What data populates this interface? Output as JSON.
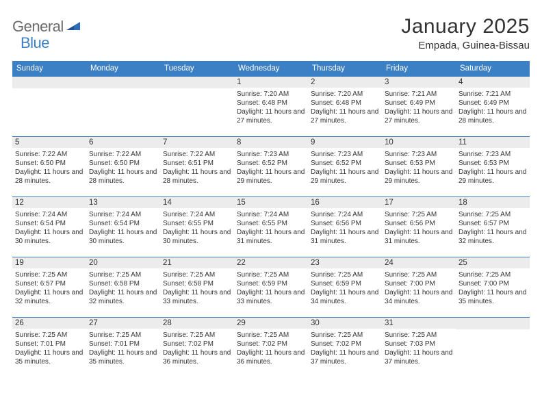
{
  "logo": {
    "word1": "General",
    "word2": "Blue"
  },
  "title": "January 2025",
  "location": "Empada, Guinea-Bissau",
  "colors": {
    "header_bg": "#3b7fc4",
    "date_bg": "#ececec",
    "text": "#333333",
    "logo_gray": "#6a6a6a",
    "logo_blue": "#3b7fc4"
  },
  "day_names": [
    "Sunday",
    "Monday",
    "Tuesday",
    "Wednesday",
    "Thursday",
    "Friday",
    "Saturday"
  ],
  "weeks": [
    [
      null,
      null,
      null,
      {
        "date": "1",
        "sunrise": "7:20 AM",
        "sunset": "6:48 PM",
        "daylight": "11 hours and 27 minutes."
      },
      {
        "date": "2",
        "sunrise": "7:20 AM",
        "sunset": "6:48 PM",
        "daylight": "11 hours and 27 minutes."
      },
      {
        "date": "3",
        "sunrise": "7:21 AM",
        "sunset": "6:49 PM",
        "daylight": "11 hours and 27 minutes."
      },
      {
        "date": "4",
        "sunrise": "7:21 AM",
        "sunset": "6:49 PM",
        "daylight": "11 hours and 28 minutes."
      }
    ],
    [
      {
        "date": "5",
        "sunrise": "7:22 AM",
        "sunset": "6:50 PM",
        "daylight": "11 hours and 28 minutes."
      },
      {
        "date": "6",
        "sunrise": "7:22 AM",
        "sunset": "6:50 PM",
        "daylight": "11 hours and 28 minutes."
      },
      {
        "date": "7",
        "sunrise": "7:22 AM",
        "sunset": "6:51 PM",
        "daylight": "11 hours and 28 minutes."
      },
      {
        "date": "8",
        "sunrise": "7:23 AM",
        "sunset": "6:52 PM",
        "daylight": "11 hours and 29 minutes."
      },
      {
        "date": "9",
        "sunrise": "7:23 AM",
        "sunset": "6:52 PM",
        "daylight": "11 hours and 29 minutes."
      },
      {
        "date": "10",
        "sunrise": "7:23 AM",
        "sunset": "6:53 PM",
        "daylight": "11 hours and 29 minutes."
      },
      {
        "date": "11",
        "sunrise": "7:23 AM",
        "sunset": "6:53 PM",
        "daylight": "11 hours and 29 minutes."
      }
    ],
    [
      {
        "date": "12",
        "sunrise": "7:24 AM",
        "sunset": "6:54 PM",
        "daylight": "11 hours and 30 minutes."
      },
      {
        "date": "13",
        "sunrise": "7:24 AM",
        "sunset": "6:54 PM",
        "daylight": "11 hours and 30 minutes."
      },
      {
        "date": "14",
        "sunrise": "7:24 AM",
        "sunset": "6:55 PM",
        "daylight": "11 hours and 30 minutes."
      },
      {
        "date": "15",
        "sunrise": "7:24 AM",
        "sunset": "6:55 PM",
        "daylight": "11 hours and 31 minutes."
      },
      {
        "date": "16",
        "sunrise": "7:24 AM",
        "sunset": "6:56 PM",
        "daylight": "11 hours and 31 minutes."
      },
      {
        "date": "17",
        "sunrise": "7:25 AM",
        "sunset": "6:56 PM",
        "daylight": "11 hours and 31 minutes."
      },
      {
        "date": "18",
        "sunrise": "7:25 AM",
        "sunset": "6:57 PM",
        "daylight": "11 hours and 32 minutes."
      }
    ],
    [
      {
        "date": "19",
        "sunrise": "7:25 AM",
        "sunset": "6:57 PM",
        "daylight": "11 hours and 32 minutes."
      },
      {
        "date": "20",
        "sunrise": "7:25 AM",
        "sunset": "6:58 PM",
        "daylight": "11 hours and 32 minutes."
      },
      {
        "date": "21",
        "sunrise": "7:25 AM",
        "sunset": "6:58 PM",
        "daylight": "11 hours and 33 minutes."
      },
      {
        "date": "22",
        "sunrise": "7:25 AM",
        "sunset": "6:59 PM",
        "daylight": "11 hours and 33 minutes."
      },
      {
        "date": "23",
        "sunrise": "7:25 AM",
        "sunset": "6:59 PM",
        "daylight": "11 hours and 34 minutes."
      },
      {
        "date": "24",
        "sunrise": "7:25 AM",
        "sunset": "7:00 PM",
        "daylight": "11 hours and 34 minutes."
      },
      {
        "date": "25",
        "sunrise": "7:25 AM",
        "sunset": "7:00 PM",
        "daylight": "11 hours and 35 minutes."
      }
    ],
    [
      {
        "date": "26",
        "sunrise": "7:25 AM",
        "sunset": "7:01 PM",
        "daylight": "11 hours and 35 minutes."
      },
      {
        "date": "27",
        "sunrise": "7:25 AM",
        "sunset": "7:01 PM",
        "daylight": "11 hours and 35 minutes."
      },
      {
        "date": "28",
        "sunrise": "7:25 AM",
        "sunset": "7:02 PM",
        "daylight": "11 hours and 36 minutes."
      },
      {
        "date": "29",
        "sunrise": "7:25 AM",
        "sunset": "7:02 PM",
        "daylight": "11 hours and 36 minutes."
      },
      {
        "date": "30",
        "sunrise": "7:25 AM",
        "sunset": "7:02 PM",
        "daylight": "11 hours and 37 minutes."
      },
      {
        "date": "31",
        "sunrise": "7:25 AM",
        "sunset": "7:03 PM",
        "daylight": "11 hours and 37 minutes."
      },
      null
    ]
  ],
  "labels": {
    "sunrise": "Sunrise:",
    "sunset": "Sunset:",
    "daylight": "Daylight:"
  }
}
